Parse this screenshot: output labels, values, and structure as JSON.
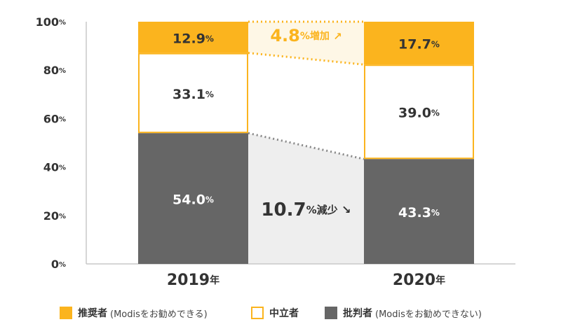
{
  "chart_data": {
    "type": "bar",
    "stacked": true,
    "categories": [
      "2019",
      "2020"
    ],
    "category_suffix": "年",
    "ylim": [
      0,
      100
    ],
    "yticks": [
      0,
      20,
      40,
      60,
      80,
      100
    ],
    "ytick_suffix": "%",
    "value_suffix": "%",
    "series": [
      {
        "name": "批判者",
        "note": "(Modisをお勧めできない)",
        "values": [
          54.0,
          43.3
        ],
        "labels": [
          "54.0",
          "43.3"
        ],
        "color": "#666666"
      },
      {
        "name": "中立者",
        "values": [
          33.1,
          39.0
        ],
        "labels": [
          "33.1",
          "39.0"
        ],
        "color": "#ffffff"
      },
      {
        "name": "推奨者",
        "note": "(Modisをお勧めできる)",
        "values": [
          12.9,
          17.7
        ],
        "labels": [
          "12.9",
          "17.7"
        ],
        "color": "#fbb41e"
      }
    ],
    "annotations": [
      {
        "value": "4.8",
        "unit": "%",
        "text": "増加",
        "arrow": "↗",
        "color": "#fbb41e"
      },
      {
        "value": "10.7",
        "unit": "%",
        "text": "減少",
        "arrow": "↘",
        "color": "#333333"
      }
    ],
    "colors": {
      "accent": "#fbb41e",
      "dark": "#666666",
      "axis": "#c8c8c8",
      "connector_dark": "#888888",
      "band_light": "#eeeeee",
      "band_yellow": "#fef7e6",
      "text": "#333333"
    }
  }
}
